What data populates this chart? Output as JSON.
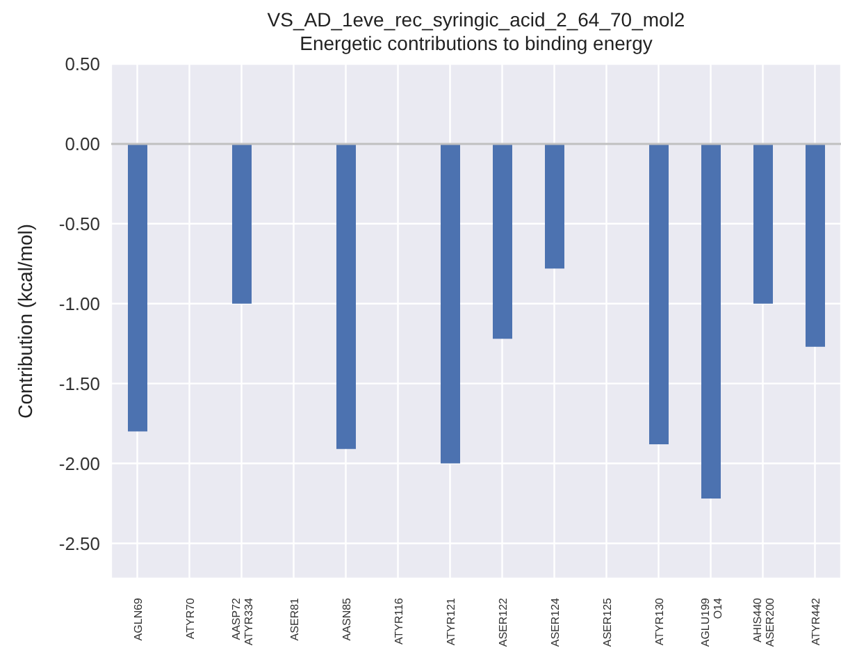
{
  "chart_data": {
    "type": "bar",
    "title": "VS_AD_1eve_rec_syringic_acid_2_64_70_mol2",
    "subtitle": "Energetic contributions to binding energy",
    "ylabel": "Contribution (kcal/mol)",
    "categories": [
      "AGLN69",
      "ATYR70",
      "AASP72\nATYR334",
      "ASER81",
      "AASN85",
      "ATYR116",
      "ATYR121",
      "ASER122",
      "ASER124",
      "ASER125",
      "ATYR130",
      "AGLU199\nO14",
      "AHIS440\nASER200",
      "ATYR442"
    ],
    "values": [
      -1.8,
      0,
      -1.0,
      0,
      -1.91,
      0,
      -2.0,
      -1.22,
      -0.78,
      0,
      -1.88,
      -2.22,
      -1.0,
      -1.27
    ],
    "color": "#4c72b0",
    "ylim": [
      -2.72,
      0.5
    ],
    "yticks": [
      {
        "value": 0.5,
        "label": "0.50"
      },
      {
        "value": 0,
        "label": "0.00"
      },
      {
        "value": -0.5,
        "label": "-0.50"
      },
      {
        "value": -1,
        "label": "-1.00"
      },
      {
        "value": -1.5,
        "label": "-1.50"
      },
      {
        "value": -2,
        "label": "-2.00"
      },
      {
        "value": -2.5,
        "label": "-2.50"
      }
    ],
    "grid": true,
    "ref_lines": [
      {
        "axis": "y",
        "value": 0,
        "color": "#c0c0c0"
      }
    ]
  }
}
